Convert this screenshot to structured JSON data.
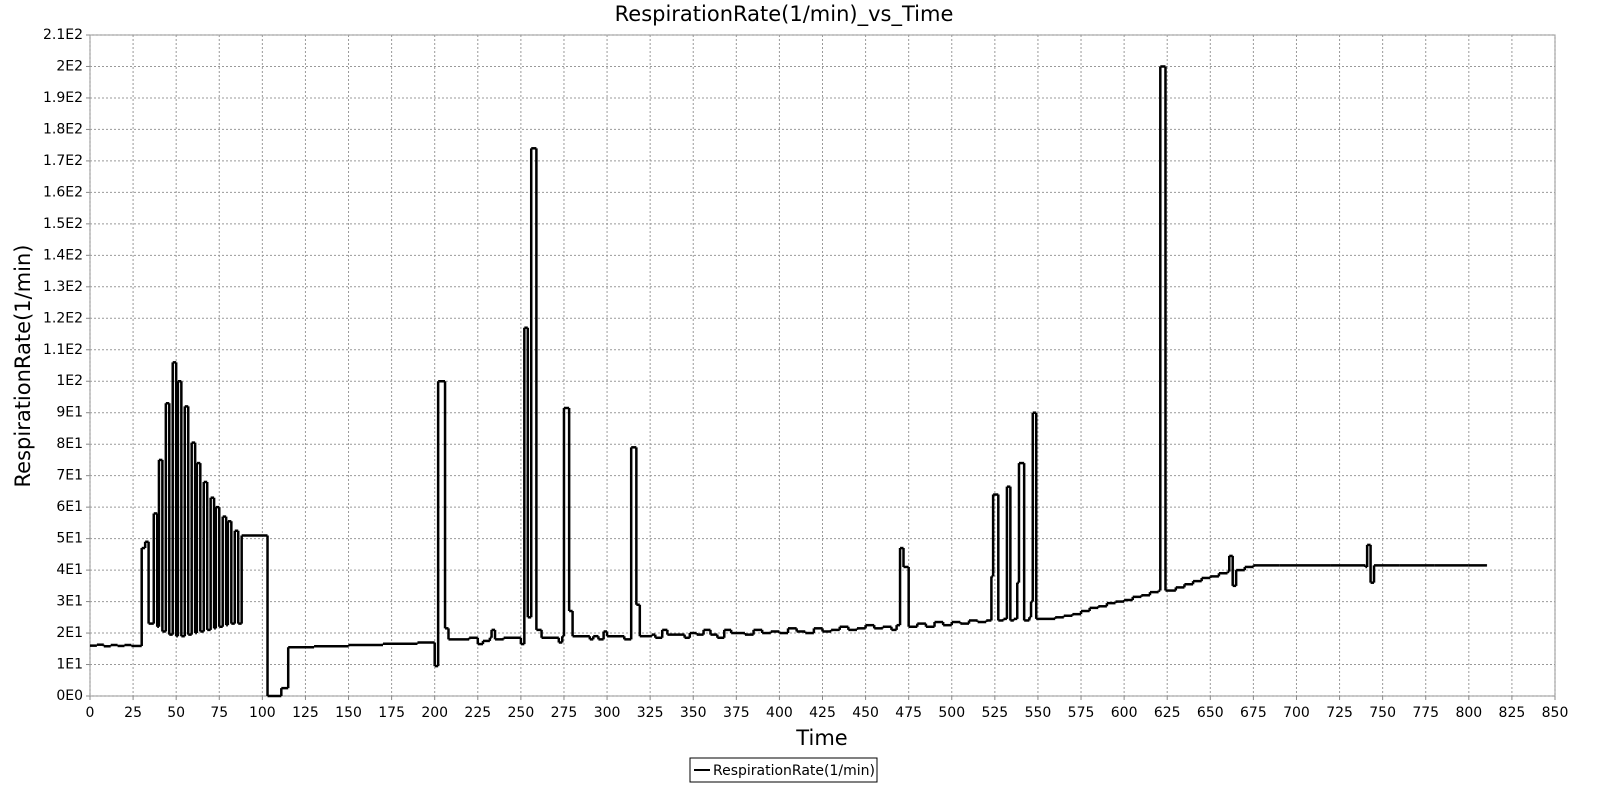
{
  "chart_data": {
    "type": "line",
    "step": true,
    "title": "RespirationRate(1/min)_vs_Time",
    "x_label": "Time",
    "y_label": "RespirationRate(1/min)",
    "x": [
      0,
      4,
      8,
      12,
      16,
      20,
      24,
      30,
      32,
      34,
      37,
      39,
      40,
      42,
      44,
      46,
      48,
      50,
      51,
      53,
      55,
      57,
      59,
      61,
      62,
      64,
      66,
      68,
      70,
      72,
      73,
      75,
      77,
      79,
      80,
      82,
      84,
      86,
      88,
      103,
      111,
      115,
      130,
      150,
      170,
      190,
      200,
      202,
      206,
      208,
      220,
      225,
      228,
      232,
      233,
      235,
      240,
      250,
      252,
      254,
      256,
      259,
      262,
      272,
      274,
      275,
      278,
      280,
      290,
      292,
      295,
      298,
      300,
      310,
      314,
      317,
      319,
      326,
      328,
      332,
      335,
      345,
      348,
      352,
      356,
      360,
      364,
      368,
      372,
      380,
      385,
      390,
      395,
      400,
      405,
      410,
      415,
      420,
      425,
      430,
      435,
      440,
      445,
      450,
      455,
      460,
      465,
      468,
      470,
      472,
      475,
      480,
      485,
      490,
      495,
      500,
      505,
      510,
      515,
      520,
      523,
      524,
      527,
      530,
      532,
      534,
      536,
      538,
      539,
      542,
      545,
      546,
      547,
      549,
      560,
      565,
      570,
      575,
      580,
      585,
      590,
      595,
      600,
      605,
      610,
      615,
      620,
      621,
      624,
      630,
      635,
      640,
      645,
      650,
      655,
      660,
      661,
      663,
      665,
      670,
      675,
      690,
      700,
      720,
      740,
      741,
      743,
      745,
      760,
      780,
      800,
      810
    ],
    "series": [
      {
        "name": "RespirationRate(1/min)",
        "color": "#000000",
        "values": [
          16,
          16.3,
          15.8,
          16.2,
          15.9,
          16.2,
          15.9,
          47,
          49,
          23,
          58,
          22,
          75,
          20.5,
          93,
          19.5,
          106,
          19,
          100,
          19,
          92,
          19.5,
          80.5,
          20,
          74,
          20.5,
          68,
          21,
          63,
          21.5,
          60,
          22,
          57,
          22.5,
          55.5,
          23,
          52.5,
          23,
          51,
          0,
          2.5,
          15.5,
          15.8,
          16.2,
          16.6,
          17,
          9.5,
          100,
          21.5,
          18,
          18.5,
          16.5,
          17.5,
          18.5,
          21,
          18,
          18.5,
          16.5,
          117,
          25,
          174,
          21,
          18.5,
          17,
          19,
          91.5,
          27,
          19,
          18,
          19,
          18,
          20.5,
          19,
          18,
          79,
          29,
          19,
          19.5,
          18.5,
          21,
          19.5,
          18.5,
          20,
          19.5,
          21,
          19.5,
          18.5,
          21,
          20,
          19.5,
          21,
          20,
          20.5,
          20,
          21.5,
          20.5,
          20,
          21.5,
          20.5,
          21,
          22,
          21,
          21.5,
          22.5,
          21.5,
          22,
          21,
          22.5,
          47,
          41,
          22,
          23,
          22,
          23.5,
          22.5,
          23.5,
          23,
          24,
          23.5,
          24,
          38,
          64,
          24,
          24.5,
          66.5,
          24,
          24.5,
          36,
          74,
          24,
          25,
          30,
          90,
          24.5,
          25,
          25.5,
          26,
          27,
          28,
          28.5,
          29.5,
          30,
          30.5,
          31.5,
          32,
          33,
          33.5,
          200,
          33.5,
          34.5,
          35.5,
          36.5,
          37.5,
          38,
          39,
          39.5,
          44.5,
          35,
          40,
          41,
          41.5,
          41.5,
          41.5,
          41.5,
          41,
          48,
          36,
          41.5,
          41.5,
          41.5,
          41.5,
          41.5
        ]
      }
    ],
    "xlim": [
      0,
      850
    ],
    "xticks": [
      0,
      25,
      50,
      75,
      100,
      125,
      150,
      175,
      200,
      225,
      250,
      275,
      300,
      325,
      350,
      375,
      400,
      425,
      450,
      475,
      500,
      525,
      550,
      575,
      600,
      625,
      650,
      675,
      700,
      725,
      750,
      775,
      800,
      825,
      850
    ],
    "ylim": [
      0,
      210
    ],
    "yticks": [
      {
        "value": 0,
        "label": "0E0"
      },
      {
        "value": 10,
        "label": "1E1"
      },
      {
        "value": 20,
        "label": "2E1"
      },
      {
        "value": 30,
        "label": "3E1"
      },
      {
        "value": 40,
        "label": "4E1"
      },
      {
        "value": 50,
        "label": "5E1"
      },
      {
        "value": 60,
        "label": "6E1"
      },
      {
        "value": 70,
        "label": "7E1"
      },
      {
        "value": 80,
        "label": "8E1"
      },
      {
        "value": 90,
        "label": "9E1"
      },
      {
        "value": 100,
        "label": "1E2"
      },
      {
        "value": 110,
        "label": "1.1E2"
      },
      {
        "value": 120,
        "label": "1.2E2"
      },
      {
        "value": 130,
        "label": "1.3E2"
      },
      {
        "value": 140,
        "label": "1.4E2"
      },
      {
        "value": 150,
        "label": "1.5E2"
      },
      {
        "value": 160,
        "label": "1.6E2"
      },
      {
        "value": 170,
        "label": "1.7E2"
      },
      {
        "value": 180,
        "label": "1.8E2"
      },
      {
        "value": 190,
        "label": "1.9E2"
      },
      {
        "value": 200,
        "label": "2E2"
      },
      {
        "value": 210,
        "label": "2.1E2"
      }
    ],
    "grid": true,
    "legend": "bottom"
  }
}
